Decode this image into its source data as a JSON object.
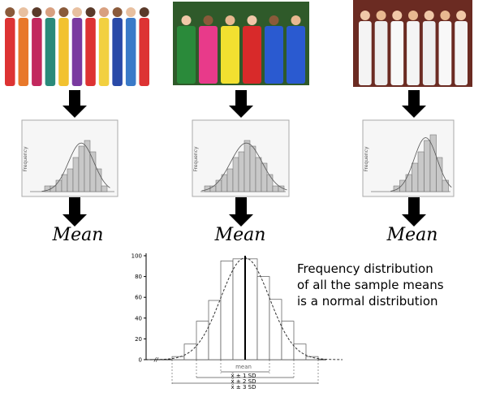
{
  "step_labels": [
    "Mean",
    "Mean",
    "Mean"
  ],
  "small_histograms": [
    {
      "y_label": "Frequency",
      "values": [
        1,
        1,
        2,
        3,
        4,
        6,
        8,
        9,
        7,
        4,
        1
      ]
    },
    {
      "y_label": "Frequency",
      "values": [
        1,
        1,
        2,
        3,
        4,
        6,
        7,
        9,
        8,
        6,
        5,
        3,
        1,
        1
      ]
    },
    {
      "y_label": "Frequency",
      "values": [
        1,
        2,
        3,
        5,
        7,
        9,
        10,
        6,
        2
      ]
    }
  ],
  "caption": [
    "Frequency distribution",
    "of all the sample means",
    "is a normal distribution"
  ],
  "final_histogram": {
    "ylim": [
      0,
      100
    ],
    "yticks": [
      0,
      20,
      40,
      60,
      80,
      100
    ],
    "values": [
      3,
      15,
      37,
      57,
      95,
      97,
      97,
      80,
      58,
      37,
      15,
      3
    ],
    "mean_label": "mean",
    "sd_labels": [
      "x̄ ± 1 SD",
      "x̄ ± 2 SD",
      "x̄ ± 3 SD"
    ]
  }
}
